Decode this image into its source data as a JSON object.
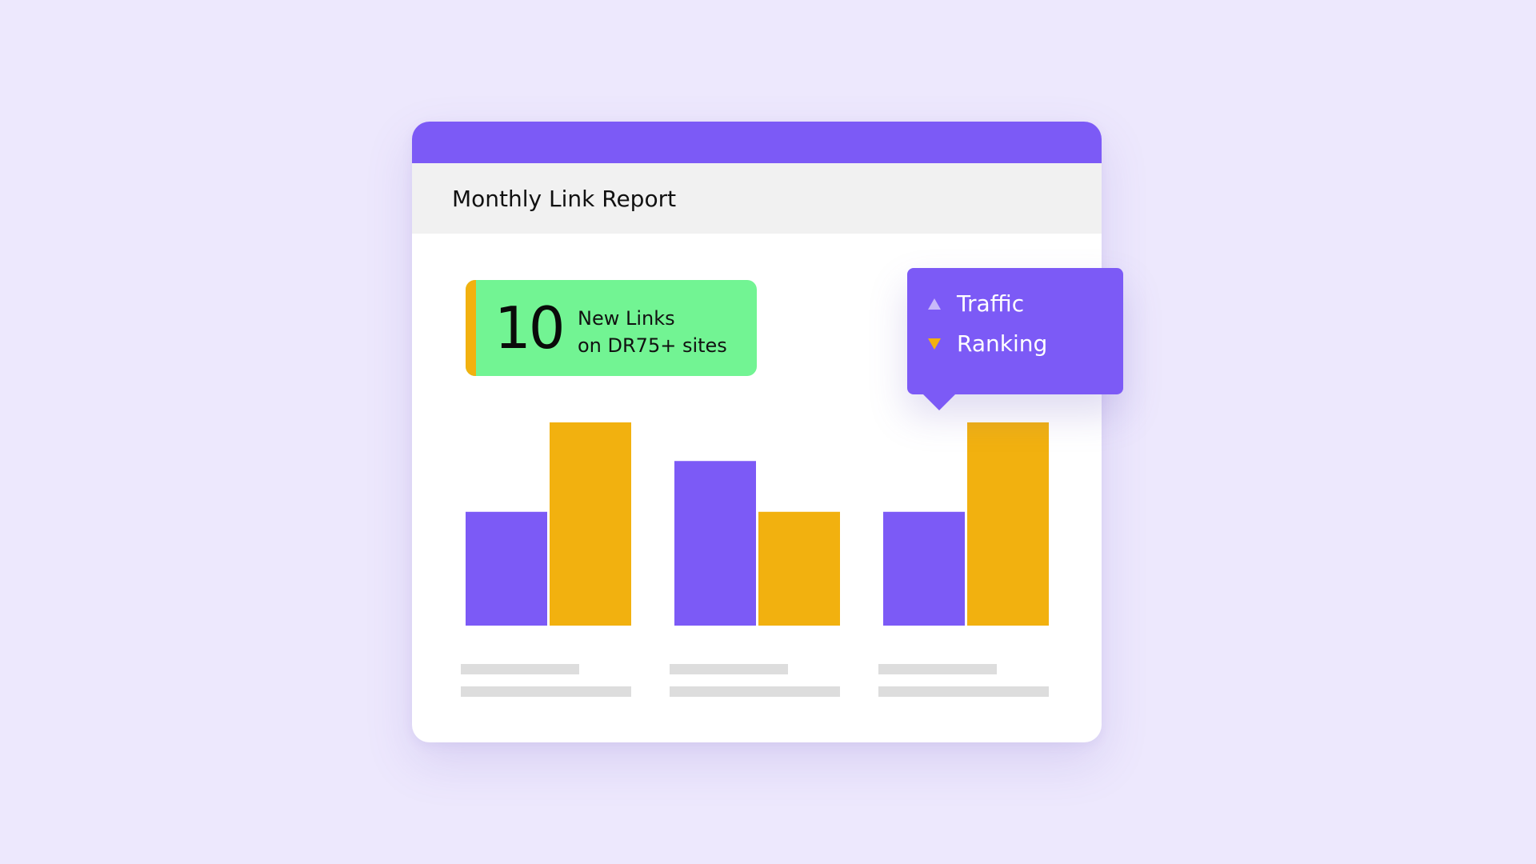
{
  "report": {
    "title": "Monthly Link Report"
  },
  "stat": {
    "value": "10",
    "label_line1": "New Links",
    "label_line2": "on DR75+ sites"
  },
  "legend": {
    "items": [
      {
        "label": "Traffic",
        "marker": "triangle-up-icon",
        "color": "#c8b9f9"
      },
      {
        "label": "Ranking",
        "marker": "triangle-down-icon",
        "color": "#f2b10f"
      }
    ]
  },
  "colors": {
    "background": "#ede8fd",
    "accent_purple": "#7c5af6",
    "accent_yellow": "#f2b10f",
    "badge_green": "#72f493",
    "placeholder_gray": "#dddddd"
  },
  "chart_data": {
    "type": "bar",
    "categories": [
      "",
      "",
      ""
    ],
    "series": [
      {
        "name": "Traffic",
        "values": [
          56,
          81,
          56
        ],
        "color": "#7c5af6"
      },
      {
        "name": "Ranking",
        "values": [
          100,
          56,
          100
        ],
        "color": "#f2b10f"
      }
    ],
    "ylim": [
      0,
      100
    ],
    "grid": false,
    "legend_position": "top-right"
  }
}
